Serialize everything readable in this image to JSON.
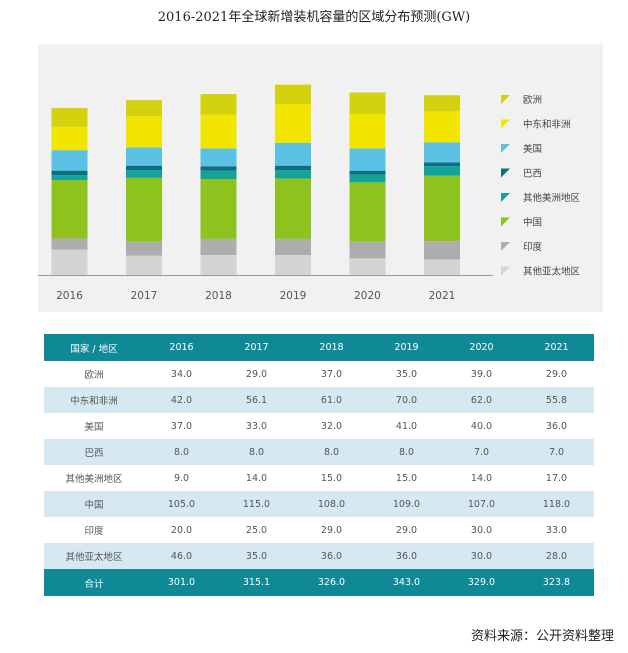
{
  "title": "2016-2021年全球新增装机容量的区域分布预测(GW)",
  "source": "资料来源：公开资料整理",
  "chart_data": {
    "type": "bar",
    "stacked": true,
    "categories": [
      "2016",
      "2017",
      "2018",
      "2019",
      "2020",
      "2021"
    ],
    "series": [
      {
        "name": "其他亚太地区",
        "color": "#d4d4d4",
        "values": [
          46.0,
          35.0,
          36.0,
          36.0,
          30.0,
          28.0
        ]
      },
      {
        "name": "印度",
        "color": "#adadad",
        "values": [
          20.0,
          25.0,
          29.0,
          29.0,
          30.0,
          33.0
        ]
      },
      {
        "name": "中国",
        "color": "#8dc21f",
        "values": [
          105.0,
          115.0,
          108.0,
          109.0,
          107.0,
          118.0
        ]
      },
      {
        "name": "其他美洲地区",
        "color": "#12a39a",
        "values": [
          9.0,
          14.0,
          15.0,
          15.0,
          14.0,
          17.0
        ]
      },
      {
        "name": "巴西",
        "color": "#0e6f80",
        "values": [
          8.0,
          8.0,
          8.0,
          8.0,
          7.0,
          7.0
        ]
      },
      {
        "name": "美国",
        "color": "#5bc2e3",
        "values": [
          37.0,
          33.0,
          32.0,
          41.0,
          40.0,
          36.0
        ]
      },
      {
        "name": "中东和非洲",
        "color": "#f2e600",
        "values": [
          42.0,
          56.1,
          61.0,
          70.0,
          62.0,
          55.8
        ]
      },
      {
        "name": "欧洲",
        "color": "#d4d10e",
        "values": [
          34.0,
          29.0,
          37.0,
          35.0,
          39.0,
          29.0
        ]
      }
    ],
    "legend_position": "right",
    "grid": false
  },
  "table": {
    "header": [
      "国家 / 地区",
      "2016",
      "2017",
      "2018",
      "2019",
      "2020",
      "2021"
    ],
    "rows": [
      [
        "欧洲",
        "34.0",
        "29.0",
        "37.0",
        "35.0",
        "39.0",
        "29.0"
      ],
      [
        "中东和非洲",
        "42.0",
        "56.1",
        "61.0",
        "70.0",
        "62.0",
        "55.8"
      ],
      [
        "美国",
        "37.0",
        "33.0",
        "32.0",
        "41.0",
        "40.0",
        "36.0"
      ],
      [
        "巴西",
        "8.0",
        "8.0",
        "8.0",
        "8.0",
        "7.0",
        "7.0"
      ],
      [
        "其他美洲地区",
        "9.0",
        "14.0",
        "15.0",
        "15.0",
        "14.0",
        "17.0"
      ],
      [
        "中国",
        "105.0",
        "115.0",
        "108.0",
        "109.0",
        "107.0",
        "118.0"
      ],
      [
        "印度",
        "20.0",
        "25.0",
        "29.0",
        "29.0",
        "30.0",
        "33.0"
      ],
      [
        "其他亚太地区",
        "46.0",
        "35.0",
        "36.0",
        "36.0",
        "30.0",
        "28.0"
      ]
    ],
    "total": [
      "合计",
      "301.0",
      "315.1",
      "326.0",
      "343.0",
      "329.0",
      "323.8"
    ]
  }
}
